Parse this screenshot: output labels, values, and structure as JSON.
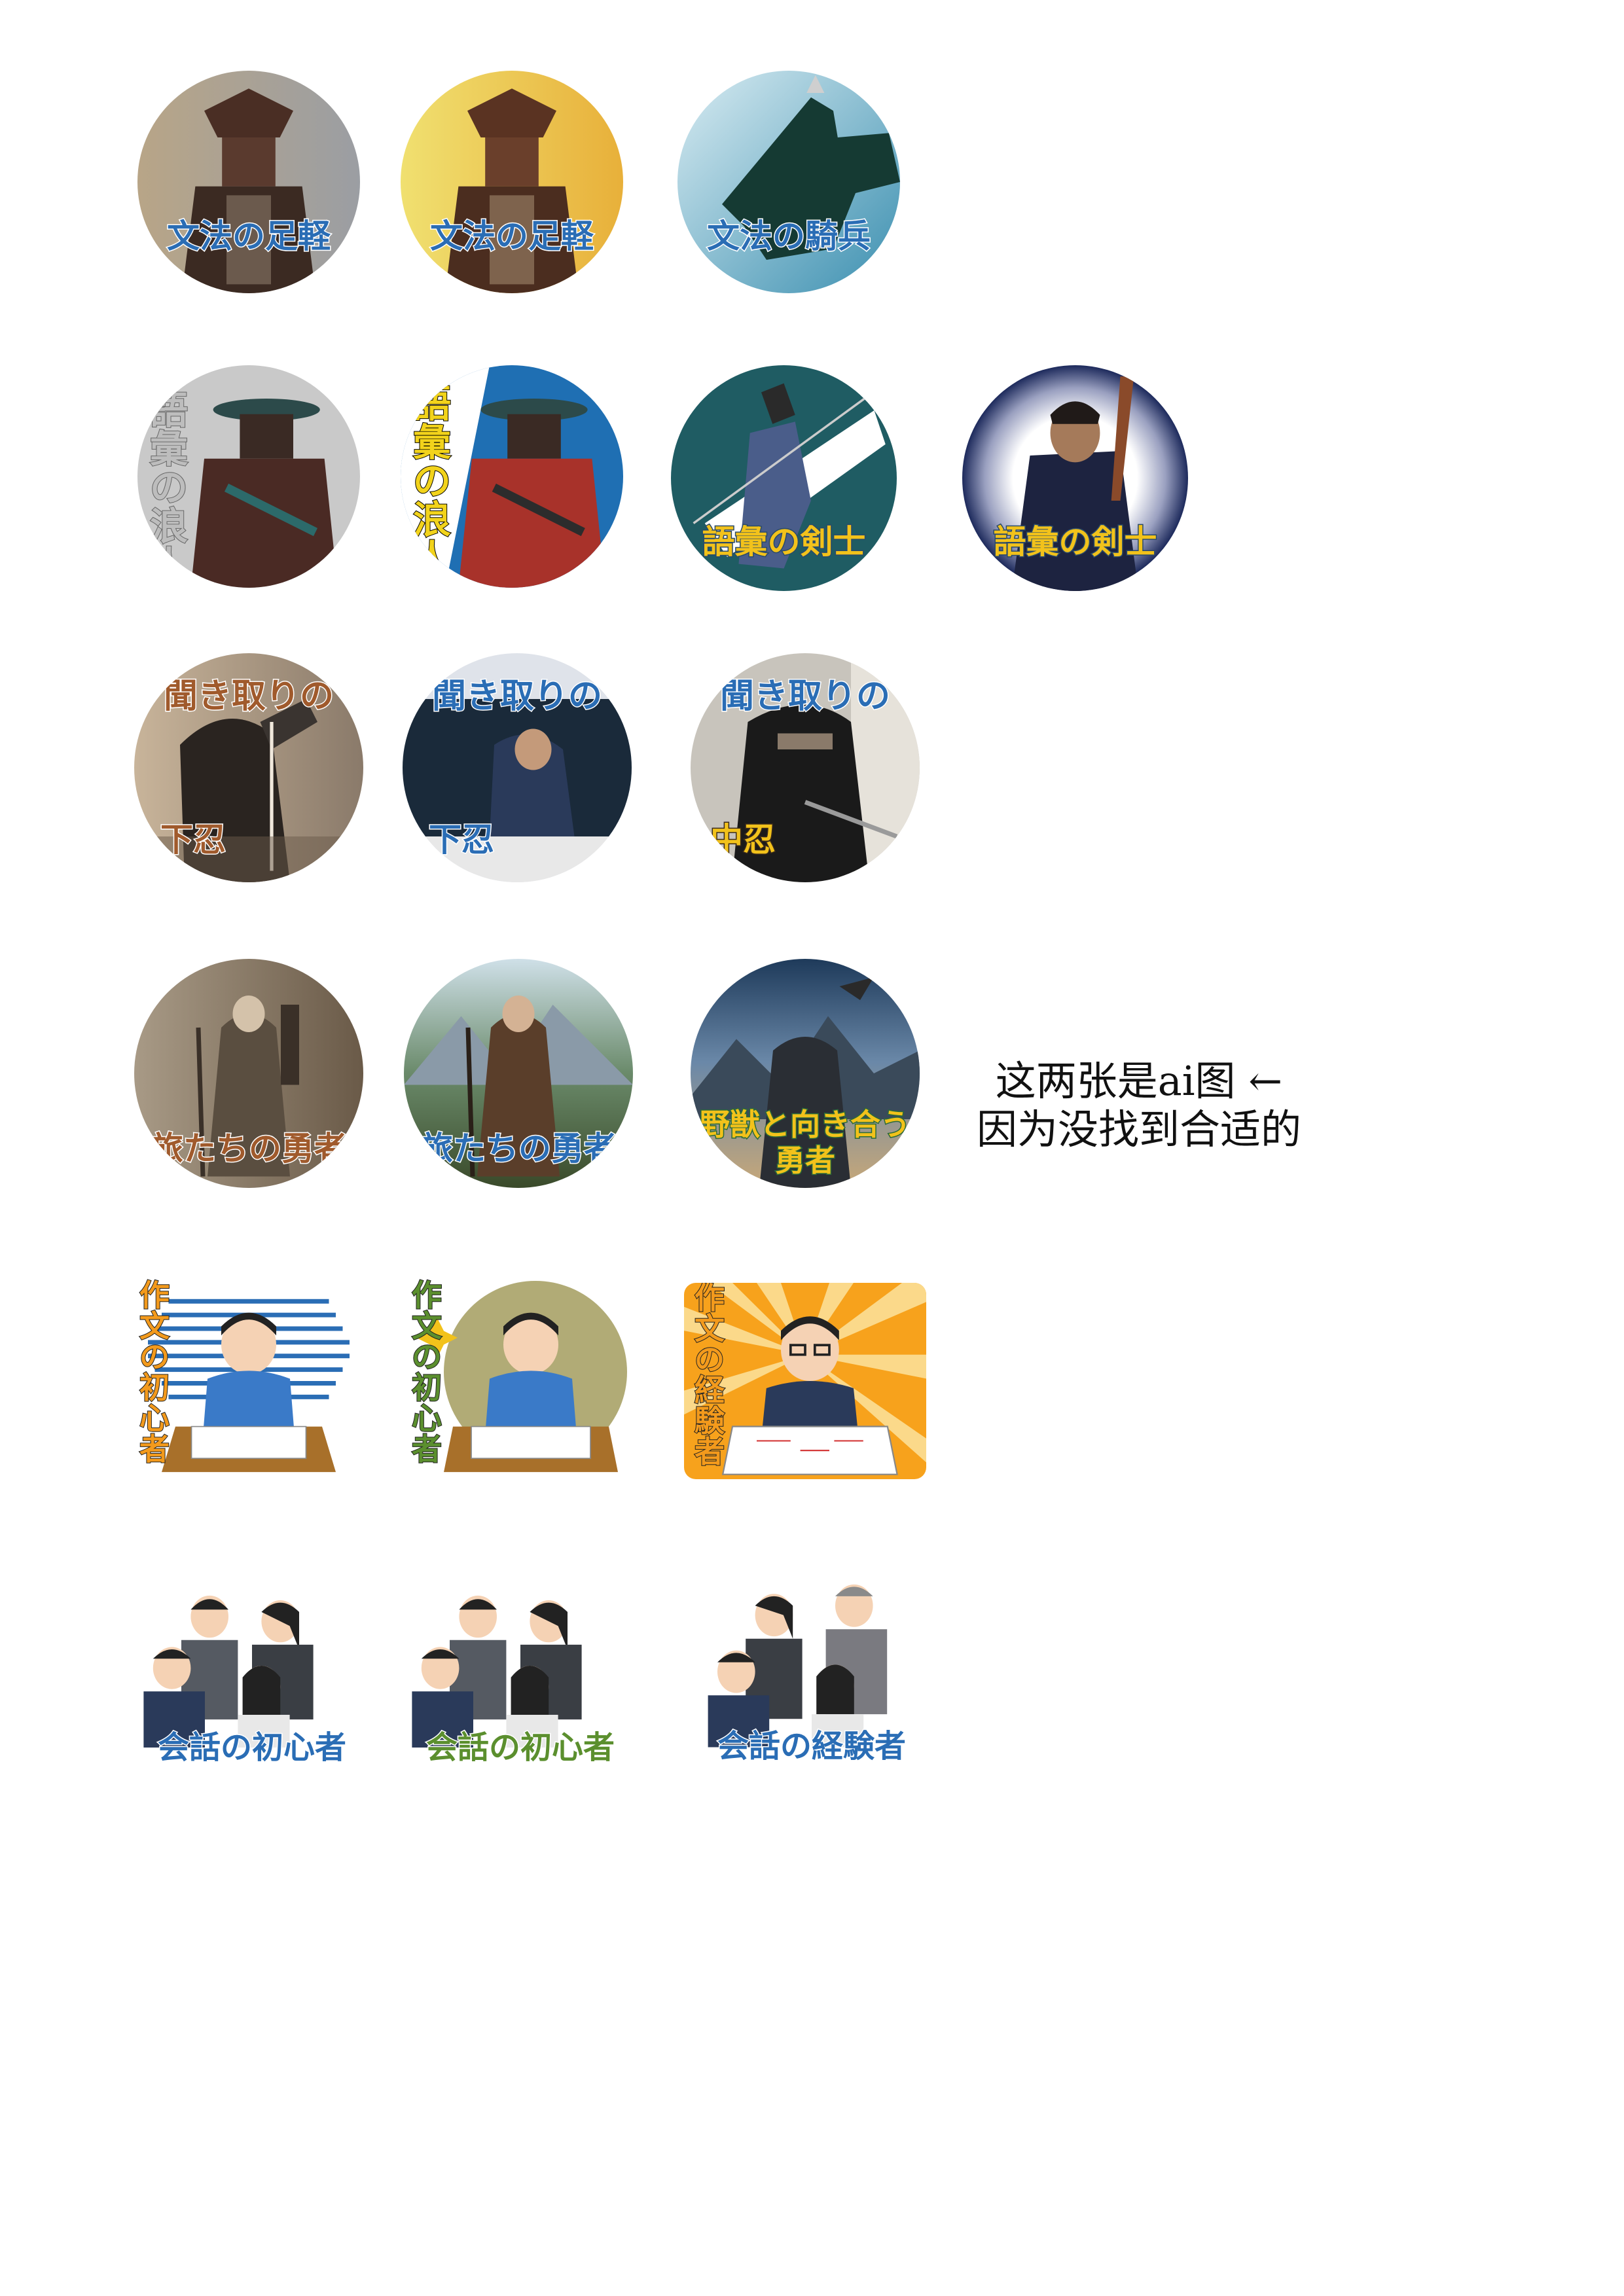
{
  "badges": {
    "r1": {
      "b1": {
        "label": "文法の足軽"
      },
      "b2": {
        "label": "文法の足軽"
      },
      "b3": {
        "label": "文法の騎兵"
      }
    },
    "r2": {
      "b1": {
        "label": "語彙の浪人"
      },
      "b2": {
        "label": "語彙の浪人"
      },
      "b3": {
        "label": "語彙の剣士"
      },
      "b4": {
        "label": "語彙の剣士"
      }
    },
    "r3": {
      "b1": {
        "title": "聞き取りの",
        "sub": "下忍"
      },
      "b2": {
        "title": "聞き取りの",
        "sub": "下忍"
      },
      "b3": {
        "title": "聞き取りの",
        "sub": "中忍"
      }
    },
    "r4": {
      "b1": {
        "label": "旅たちの勇者"
      },
      "b2": {
        "label": "旅たちの勇者"
      },
      "b3": {
        "line1": "野獣と向き合う",
        "line2": "勇者"
      }
    },
    "r5": {
      "b1": {
        "label": "作文の初心者"
      },
      "b2": {
        "label": "作文の初心者"
      },
      "b3": {
        "label": "作文の経験者"
      }
    },
    "r6": {
      "b1": {
        "label": "会話の初心者"
      },
      "b2": {
        "label": "会話の初心者"
      },
      "b3": {
        "label": "会話の経験者"
      }
    }
  },
  "note": {
    "line1": "这两张是ai图 ←",
    "line2": "因为没找到合适的"
  },
  "colors": {
    "label_blue": "#2a6db5",
    "label_yellow": "#f2c21b",
    "label_brown": "#8a5a32",
    "label_green": "#5b8f2e",
    "label_orange": "#f39a1c"
  }
}
